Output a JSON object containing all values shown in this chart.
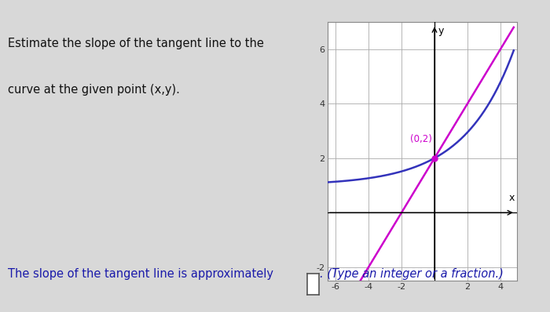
{
  "background_color": "#d8d8d8",
  "question_text_line1": "Estimate the slope of the tangent line to the",
  "question_text_line2": "curve at the given point (x,y).",
  "bottom_text_main": "The slope of the tangent line is approximately",
  "bottom_text_hint": ". (Type an integer or a fraction.)",
  "point_label": "(0,2)",
  "point_x": 0,
  "point_y": 2,
  "point_color": "#cc00cc",
  "curve_color": "#3333bb",
  "tangent_color": "#cc00cc",
  "xlim": [
    -6.5,
    5.0
  ],
  "ylim": [
    -2.5,
    7.0
  ],
  "xticks": [
    -6,
    -4,
    -2,
    2,
    4
  ],
  "yticks": [
    -2,
    2,
    4,
    6
  ],
  "graph_bg": "#ffffff",
  "grid_color": "#aaaaaa",
  "text_color": "#111111",
  "bottom_text_color": "#1a1aaa",
  "tangent_slope": 1.0,
  "curve_a": 0.3333
}
